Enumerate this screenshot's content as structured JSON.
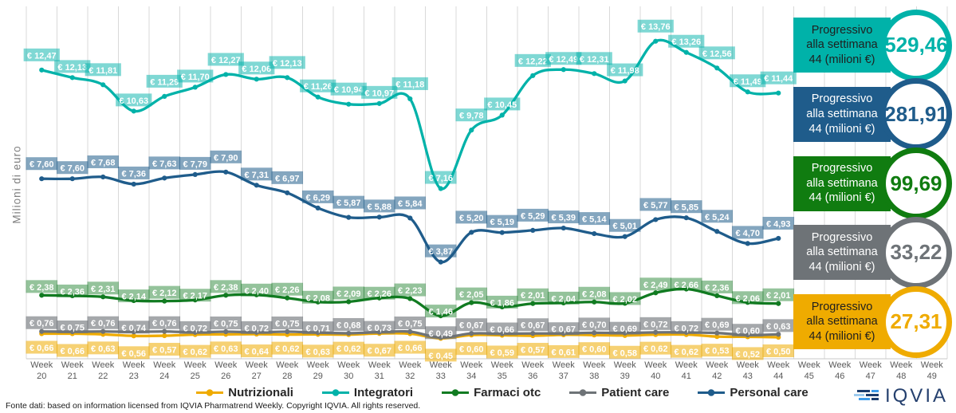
{
  "y_axis_label": "Milioni di euro",
  "week_word": "Week",
  "currency_prefix": "€ ",
  "x_axis_weeks": [
    20,
    21,
    22,
    23,
    24,
    25,
    26,
    27,
    28,
    29,
    30,
    31,
    32,
    33,
    34,
    35,
    36,
    37,
    38,
    39,
    40,
    41,
    42,
    43,
    44,
    45,
    46,
    47,
    48,
    49
  ],
  "chart_data": {
    "type": "line",
    "title": "",
    "xlabel": "",
    "ylabel": "Milioni di euro",
    "ylim": [
      0,
      15.5
    ],
    "grid": "vertical",
    "legend_position": "bottom",
    "data_weeks": [
      20,
      21,
      22,
      23,
      24,
      25,
      26,
      27,
      28,
      29,
      30,
      31,
      32,
      33,
      34,
      35,
      36,
      37,
      38,
      39,
      40,
      41,
      42,
      43,
      44
    ],
    "series": [
      {
        "name": "Nutrizionali",
        "color": "#EFAB00",
        "label_bg": "rgba(239,171,0,0.55)",
        "values": [
          0.66,
          0.66,
          0.63,
          0.56,
          0.57,
          0.62,
          0.63,
          0.64,
          0.62,
          0.63,
          0.62,
          0.67,
          0.66,
          0.45,
          0.6,
          0.59,
          0.57,
          0.61,
          0.6,
          0.58,
          0.62,
          0.62,
          0.53,
          0.52,
          0.5
        ]
      },
      {
        "name": "Integratori",
        "color": "#00B2A9",
        "label_bg": "rgba(0,178,169,0.5)",
        "values": [
          12.47,
          12.13,
          11.81,
          10.63,
          11.29,
          11.7,
          12.27,
          12.06,
          12.13,
          11.26,
          10.94,
          10.97,
          11.18,
          7.16,
          9.78,
          10.45,
          12.22,
          12.49,
          12.31,
          11.98,
          13.76,
          13.26,
          12.56,
          11.49,
          11.44
        ]
      },
      {
        "name": "Farmaci otc",
        "color": "#117B21",
        "label_bg": "rgba(17,123,33,0.45)",
        "values": [
          2.38,
          2.36,
          2.31,
          2.14,
          2.12,
          2.17,
          2.38,
          2.4,
          2.26,
          2.08,
          2.09,
          2.26,
          2.23,
          1.46,
          2.05,
          1.86,
          2.01,
          2.04,
          2.08,
          2.02,
          2.49,
          2.66,
          2.36,
          2.06,
          2.01
        ]
      },
      {
        "name": "Patient care",
        "color": "#6E7377",
        "label_bg": "rgba(110,115,119,0.62)",
        "values": [
          0.76,
          0.75,
          0.76,
          0.74,
          0.76,
          0.72,
          0.75,
          0.72,
          0.75,
          0.71,
          0.68,
          0.73,
          0.75,
          0.49,
          0.67,
          0.66,
          0.67,
          0.67,
          0.7,
          0.69,
          0.72,
          0.72,
          0.69,
          0.6,
          0.63
        ]
      },
      {
        "name": "Personal care",
        "color": "#1F5C8B",
        "label_bg": "rgba(31,92,139,0.55)",
        "values": [
          7.6,
          7.6,
          7.68,
          7.36,
          7.63,
          7.79,
          7.9,
          7.31,
          6.97,
          6.29,
          5.87,
          5.88,
          5.84,
          3.87,
          5.2,
          5.19,
          5.29,
          5.39,
          5.14,
          5.01,
          5.77,
          5.85,
          5.24,
          4.7,
          4.93
        ]
      }
    ]
  },
  "summary_boxes": [
    {
      "lines": [
        "Progressivo",
        "alla settimana",
        "44 (milioni €)"
      ],
      "value": "529,46",
      "color": "#00B2A9",
      "text_color": "#1f1f1f"
    },
    {
      "lines": [
        "Progressivo",
        "alla settimana",
        "44 (milioni €)"
      ],
      "value": "281,91",
      "color": "#1F5C8B",
      "text_color": "#ffffff"
    },
    {
      "lines": [
        "Progressivo",
        "alla settimana",
        "44 (milioni €)"
      ],
      "value": "99,69",
      "color": "#107C10",
      "text_color": "#ffffff"
    },
    {
      "lines": [
        "Progressivo",
        "alla settimana",
        "44 (milioni €)"
      ],
      "value": "33,22",
      "color": "#6E7377",
      "text_color": "#ffffff"
    },
    {
      "lines": [
        "Progressivo",
        "alla settimana",
        "44 (milioni €)"
      ],
      "value": "27,31",
      "color": "#EFAB00",
      "text_color": "#1f1f1f"
    }
  ],
  "footer": {
    "source": "Fonte dati: based on information licensed from IQVIA Pharmatrend Weekly. Copyright IQVIA. All rights reserved.",
    "logo": "IQVIA"
  }
}
